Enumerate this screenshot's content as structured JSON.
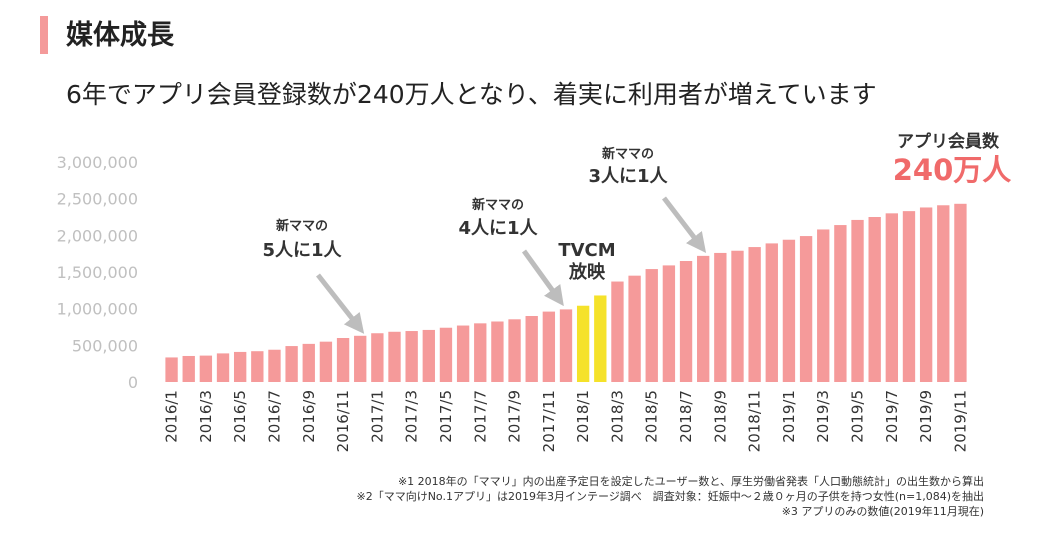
{
  "header": {
    "section_title": "媒体成長",
    "headline": "6年でアプリ会員登録数が240万人となり、着実に利用者が増えています"
  },
  "colors": {
    "accent": "#f49a9a",
    "bar": "#f59a9a",
    "highlight_bar": "#f5e22a",
    "total_value": "#f06a6a",
    "axis_text": "#c0c0c0",
    "arrow": "#bdbdbd"
  },
  "chart_data": {
    "type": "bar",
    "title": "アプリ会員数",
    "total_label": "240万人",
    "xlabel": "",
    "ylabel": "",
    "ylim": [
      0,
      3000000
    ],
    "y_ticks": [
      "0",
      "500,000",
      "1,000,000",
      "1,500,000",
      "2,000,000",
      "2,500,000",
      "3,000,000"
    ],
    "grid": false,
    "categories": [
      "2016/1",
      "2016/2",
      "2016/3",
      "2016/4",
      "2016/5",
      "2016/6",
      "2016/7",
      "2016/8",
      "2016/9",
      "2016/10",
      "2016/11",
      "2016/12",
      "2017/1",
      "2017/2",
      "2017/3",
      "2017/4",
      "2017/5",
      "2017/6",
      "2017/7",
      "2017/8",
      "2017/9",
      "2017/10",
      "2017/11",
      "2017/12",
      "2018/1",
      "2018/2",
      "2018/3",
      "2018/4",
      "2018/5",
      "2018/6",
      "2018/7",
      "2018/8",
      "2018/9",
      "2018/10",
      "2018/11",
      "2018/12",
      "2019/1",
      "2019/2",
      "2019/3",
      "2019/4",
      "2019/5",
      "2019/6",
      "2019/7",
      "2019/8",
      "2019/9",
      "2019/10",
      "2019/11"
    ],
    "x_tick_labels": [
      "2016/1",
      "2016/3",
      "2016/5",
      "2016/7",
      "2016/9",
      "2016/11",
      "2017/1",
      "2017/3",
      "2017/5",
      "2017/7",
      "2017/9",
      "2017/11",
      "2018/1",
      "2018/3",
      "2018/5",
      "2018/7",
      "2018/9",
      "2018/11",
      "2019/1",
      "2019/3",
      "2019/5",
      "2019/7",
      "2019/9",
      "2019/11"
    ],
    "values": [
      335000,
      355000,
      360000,
      390000,
      410000,
      420000,
      440000,
      490000,
      520000,
      550000,
      600000,
      630000,
      665000,
      685000,
      695000,
      710000,
      740000,
      770000,
      800000,
      825000,
      855000,
      900000,
      960000,
      990000,
      1040000,
      1180000,
      1370000,
      1450000,
      1540000,
      1590000,
      1650000,
      1720000,
      1760000,
      1790000,
      1840000,
      1890000,
      1940000,
      1990000,
      2080000,
      2140000,
      2210000,
      2250000,
      2300000,
      2330000,
      2380000,
      2410000,
      2430000
    ],
    "highlight_indices": [
      24,
      25
    ],
    "annotations": [
      {
        "line1": "新ママの",
        "line2": "5人に1人",
        "target_index": 11
      },
      {
        "line1": "新ママの",
        "line2": "4人に1人",
        "target_index": 23
      },
      {
        "line1": "TVCM",
        "line2": "放映",
        "target_index": 24
      },
      {
        "line1": "新ママの",
        "line2": "3人に1人",
        "target_index": 31
      }
    ]
  },
  "footnotes": [
    "※1 2018年の「ママリ」内の出産予定日を設定したユーザー数と、厚生労働省発表「人口動態統計」の出生数から算出",
    "※2「ママ向けNo.1アプリ」は2019年3月インテージ調べ　調査対象：妊娠中〜２歳０ヶ月の子供を持つ女性(n=1,084)を抽出",
    "※3 アプリのみの数値(2019年11月現在)"
  ]
}
